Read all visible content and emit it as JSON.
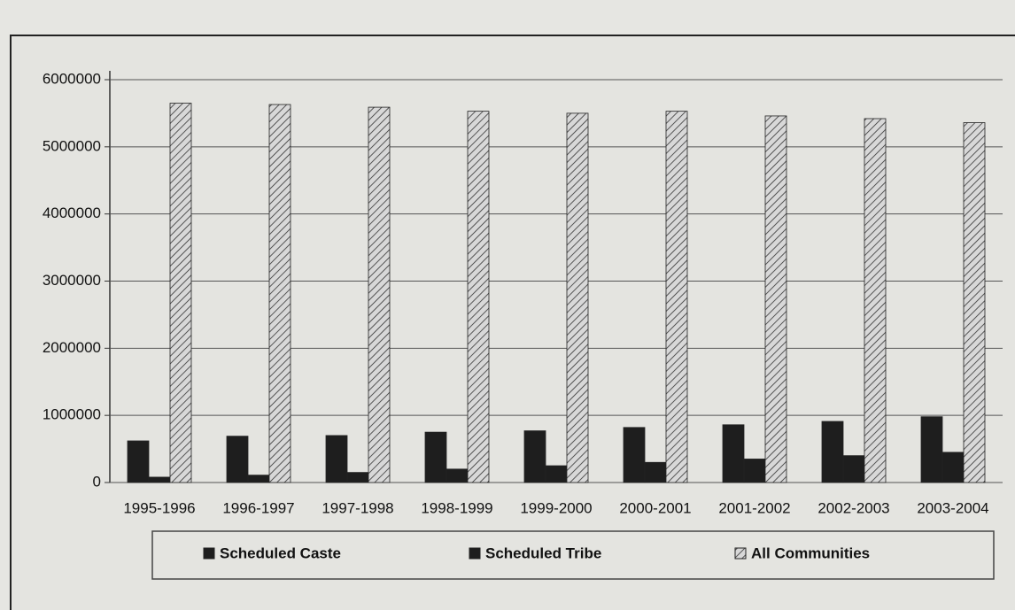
{
  "chart_data": {
    "type": "bar",
    "categories": [
      "1995-1996",
      "1996-1997",
      "1997-1998",
      "1998-1999",
      "1999-2000",
      "2000-2001",
      "2001-2002",
      "2002-2003",
      "2003-2004"
    ],
    "series": [
      {
        "name": "Scheduled Caste",
        "color": "#1e1e1e",
        "values": [
          620000,
          690000,
          700000,
          750000,
          770000,
          820000,
          860000,
          910000,
          980000
        ]
      },
      {
        "name": "Scheduled Tribe",
        "color": "#1e1e1e",
        "values": [
          80000,
          110000,
          150000,
          200000,
          250000,
          300000,
          350000,
          400000,
          450000
        ]
      },
      {
        "name": "All Communities",
        "color": "#d8d8d8",
        "values": [
          5650000,
          5630000,
          5590000,
          5530000,
          5500000,
          5530000,
          5460000,
          5420000,
          5360000
        ]
      }
    ],
    "ylim": [
      0,
      6000000
    ],
    "yticks": [
      0,
      1000000,
      2000000,
      3000000,
      4000000,
      5000000,
      6000000
    ],
    "grid": true,
    "legend": "bottom"
  }
}
